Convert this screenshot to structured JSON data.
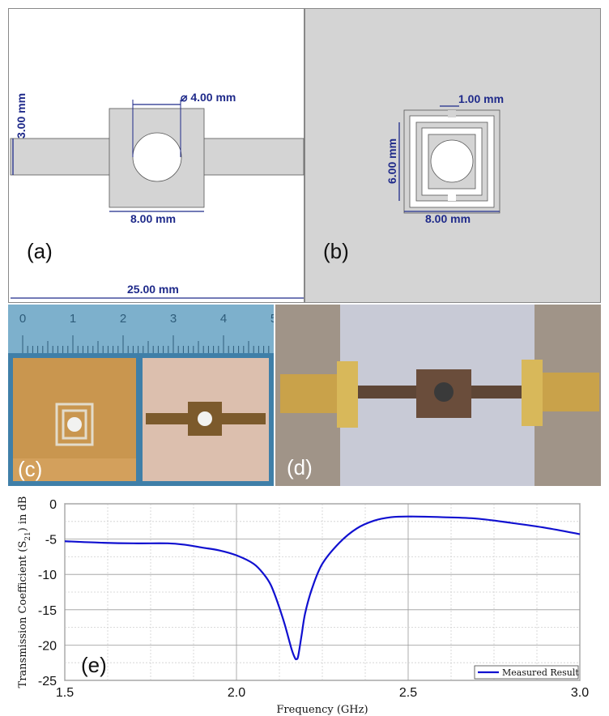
{
  "panel_a": {
    "label": "(a)",
    "dim_width": "25.00 mm",
    "dim_height": "3.00 mm",
    "dim_hole": "⌀ 4.00 mm",
    "dim_center": "8.00 mm"
  },
  "panel_b": {
    "label": "(b)",
    "dim_gap": "1.00 mm",
    "dim_height": "6.00 mm",
    "dim_width": "8.00 mm"
  },
  "panel_c": {
    "label": "(c)",
    "ruler_numbers": [
      "0",
      "1",
      "2",
      "3",
      "4",
      "5"
    ]
  },
  "panel_d": {
    "label": "(d)"
  },
  "colors": {
    "dimension": "#1f2a8a",
    "substrate_gray": "#d4d4d4",
    "series_line": "#1010d0"
  },
  "chart_data": {
    "type": "line",
    "panel_label": "(e)",
    "xlabel": "Frequency (GHz)",
    "ylabel": "Transmission Coefficient (S21) in dB",
    "ylabel_parts": {
      "main": "Transmission Coefficient (S",
      "sub": "21",
      "tail": ") in dB"
    },
    "xlim": [
      1.5,
      3.0
    ],
    "ylim": [
      -25,
      0
    ],
    "xticks": [
      "1.5",
      "2.0",
      "2.5",
      "3.0"
    ],
    "yticks": [
      "0",
      "-5",
      "-10",
      "-15",
      "-20",
      "-25"
    ],
    "grid": true,
    "legend_position": "bottom-right",
    "series": [
      {
        "name": "Measured Result",
        "x": [
          1.5,
          1.6,
          1.7,
          1.8,
          1.85,
          1.9,
          1.95,
          2.0,
          2.05,
          2.08,
          2.1,
          2.12,
          2.14,
          2.16,
          2.17,
          2.175,
          2.18,
          2.19,
          2.2,
          2.22,
          2.25,
          2.3,
          2.35,
          2.4,
          2.45,
          2.5,
          2.6,
          2.7,
          2.8,
          2.9,
          3.0
        ],
        "y": [
          -5.3,
          -5.5,
          -5.6,
          -5.6,
          -5.8,
          -6.2,
          -6.6,
          -7.3,
          -8.5,
          -10.0,
          -11.5,
          -14.0,
          -17.0,
          -20.5,
          -21.8,
          -22.0,
          -21.5,
          -18.5,
          -15.5,
          -12.0,
          -8.5,
          -5.5,
          -3.5,
          -2.4,
          -1.9,
          -1.8,
          -1.9,
          -2.1,
          -2.7,
          -3.4,
          -4.3
        ]
      }
    ]
  }
}
